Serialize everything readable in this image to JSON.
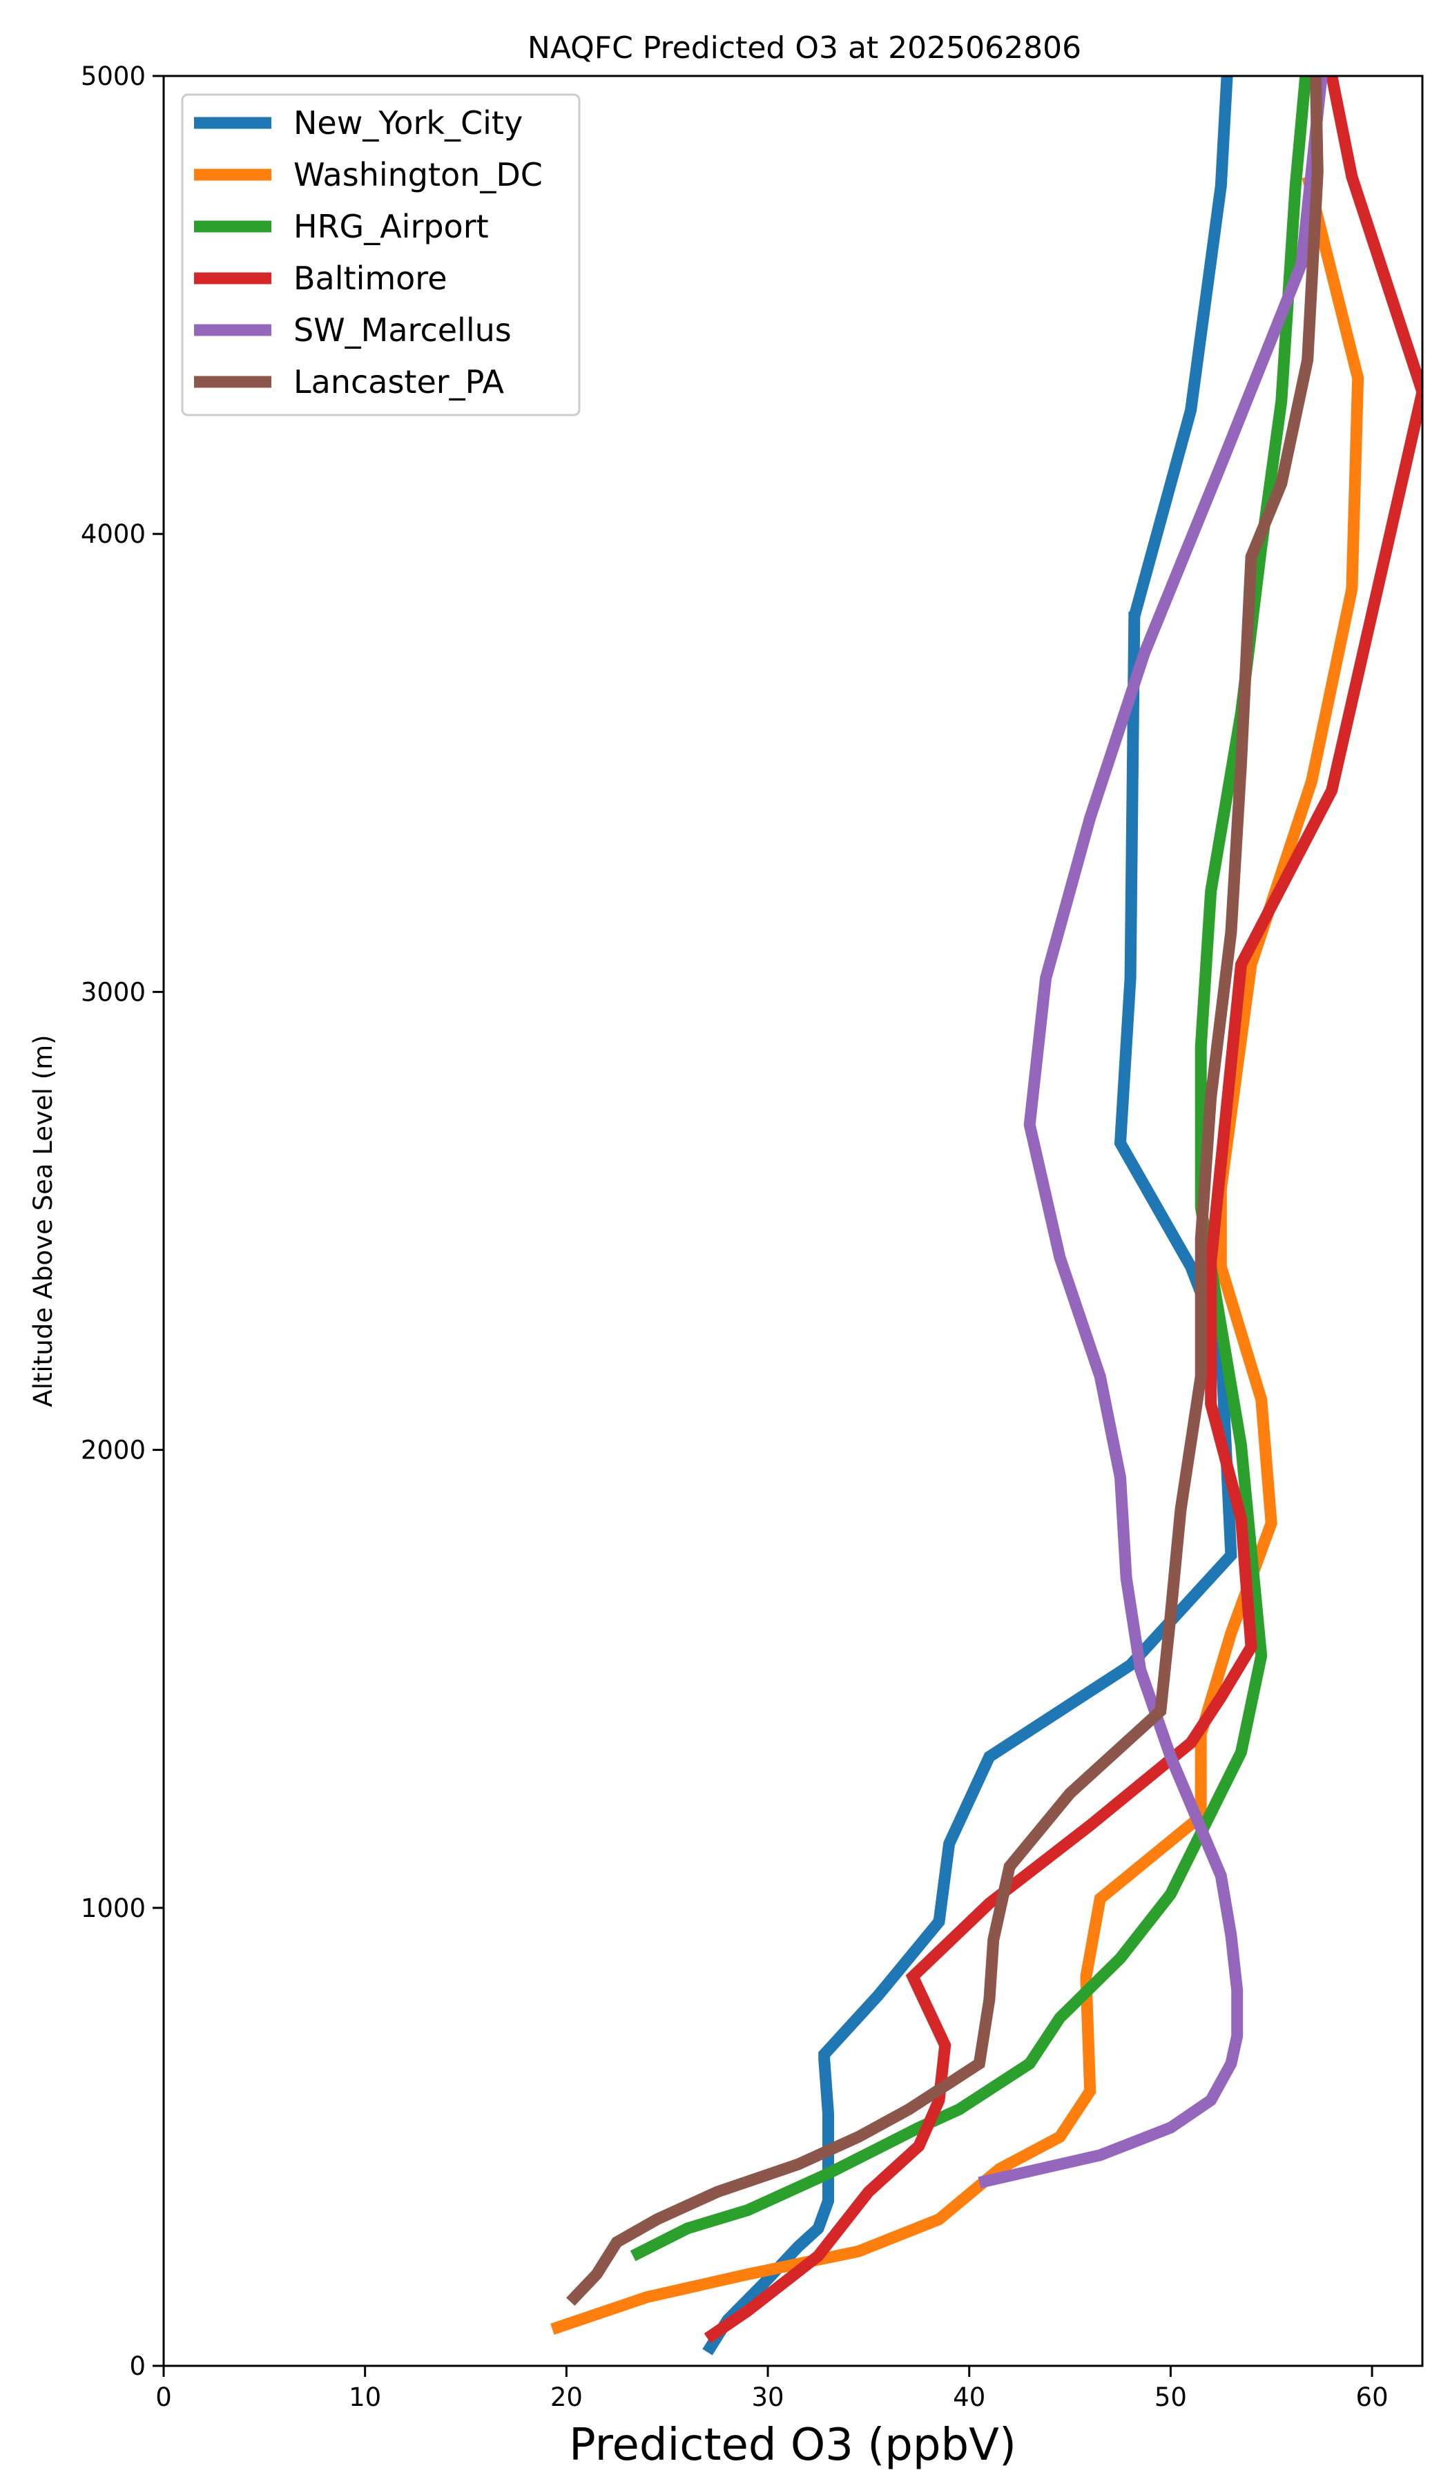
{
  "chart_data": {
    "type": "line",
    "title": "NAQFC Predicted O3 at 2025062806",
    "xlabel": "Predicted O3 (ppbV)",
    "ylabel": "Altitude Above Sea Level (m)",
    "xlim": [
      0,
      62.5
    ],
    "ylim": [
      0,
      5000
    ],
    "xticks": [
      "0",
      "10",
      "20",
      "30",
      "40",
      "50",
      "60"
    ],
    "yticks": [
      "0",
      "1000",
      "2000",
      "3000",
      "4000",
      "5000"
    ],
    "grid": false,
    "legend_position": "top-left",
    "series": [
      {
        "name": "New_York_City",
        "color": "#1f77b4",
        "x": [
          27.0,
          28.0,
          29.8,
          31.5,
          32.5,
          33.0,
          33.0,
          32.8,
          32.8,
          35.5,
          38.5,
          39.0,
          41.0,
          48.0,
          53.0,
          52.5,
          51.0,
          47.5,
          48.0,
          48.2,
          48.2,
          51.0,
          52.5,
          52.8
        ],
        "y": [
          30,
          100,
          180,
          260,
          300,
          360,
          550,
          670,
          680,
          810,
          970,
          1140,
          1330,
          1530,
          1770,
          2230,
          2400,
          2670,
          3030,
          3830,
          3820,
          4270,
          4760,
          5000
        ]
      },
      {
        "name": "Washington_DC",
        "color": "#ff7f0e",
        "x": [
          19.3,
          24.0,
          29.0,
          34.5,
          38.5,
          41.5,
          44.5,
          46.0,
          45.8,
          46.5,
          51.5,
          51.5,
          53.0,
          55.0,
          54.5,
          52.5,
          52.5,
          54.0,
          57.0,
          59.0,
          59.3,
          59.3,
          56.8
        ],
        "y": [
          80,
          150,
          200,
          250,
          320,
          430,
          500,
          600,
          850,
          1020,
          1200,
          1380,
          1600,
          1840,
          2110,
          2400,
          2570,
          3060,
          3460,
          3880,
          4340,
          4340,
          4780
        ]
      },
      {
        "name": "HRG_Airport",
        "color": "#2ca02c",
        "x": [
          23.3,
          26.0,
          29.0,
          33.0,
          37.5,
          39.5,
          43.0,
          44.5,
          47.5,
          50.0,
          53.5,
          54.5,
          53.5,
          51.5,
          51.5,
          51.5,
          52.0,
          53.5,
          54.5,
          55.5,
          56.2,
          56.7
        ],
        "y": [
          240,
          300,
          340,
          420,
          520,
          560,
          660,
          760,
          890,
          1030,
          1340,
          1550,
          2010,
          2530,
          2870,
          2880,
          3220,
          3610,
          3970,
          4290,
          4760,
          5000
        ]
      },
      {
        "name": "Baltimore",
        "color": "#d62728",
        "x": [
          27.0,
          29.0,
          32.5,
          35.0,
          37.5,
          38.5,
          38.8,
          37.2,
          41.0,
          46.0,
          51.0,
          52.5,
          54.0,
          53.5,
          52.0,
          52.0,
          53.5,
          58.0,
          62.5,
          59.0,
          58.0,
          57.8
        ],
        "y": [
          60,
          120,
          240,
          380,
          480,
          580,
          700,
          850,
          1010,
          1180,
          1360,
          1460,
          1570,
          1850,
          2100,
          2410,
          3060,
          3440,
          4310,
          4780,
          5000,
          5000
        ]
      },
      {
        "name": "SW_Marcellus",
        "color": "#9467bd",
        "x": [
          40.5,
          42.5,
          46.5,
          50.0,
          52.0,
          53.0,
          53.3,
          53.3,
          53.0,
          52.5,
          50.0,
          48.5,
          47.8,
          47.5,
          46.5,
          44.5,
          43.0,
          43.8,
          46.0,
          48.7,
          52.5,
          56.5,
          57.5
        ],
        "y": [
          400,
          420,
          460,
          520,
          580,
          660,
          720,
          820,
          940,
          1070,
          1330,
          1520,
          1720,
          1940,
          2160,
          2420,
          2710,
          3030,
          3380,
          3740,
          4150,
          4590,
          5000
        ]
      },
      {
        "name": "Lancaster_PA",
        "color": "#8c564b",
        "x": [
          20.2,
          21.5,
          22.5,
          24.5,
          27.5,
          31.5,
          34.5,
          37.0,
          40.5,
          41.0,
          41.2,
          42.0,
          45.0,
          49.5,
          50.0,
          50.5,
          51.5,
          51.5,
          52.0,
          53.0,
          53.5,
          54.0,
          55.5,
          56.8,
          57.3,
          57.2
        ],
        "y": [
          140,
          200,
          270,
          320,
          380,
          440,
          500,
          560,
          660,
          800,
          930,
          1090,
          1250,
          1430,
          1640,
          1870,
          2160,
          2460,
          2770,
          3130,
          3500,
          3950,
          4110,
          4380,
          4790,
          5000
        ]
      }
    ]
  }
}
